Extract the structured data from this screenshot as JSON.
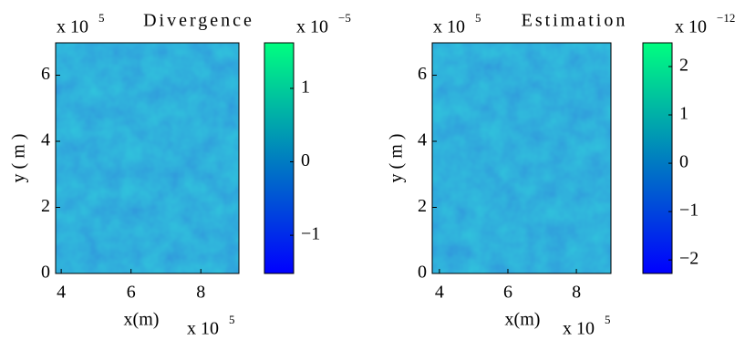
{
  "chart_data": [
    {
      "type": "heatmap",
      "title": "Divergence",
      "xlabel": "x(m)",
      "ylabel": "y ( m )",
      "x_scale_label": "x 10",
      "x_scale_exponent": "5",
      "y_scale_label": "x 10",
      "y_scale_exponent": "5",
      "xlim": [
        3.84,
        9.09
      ],
      "xticks": [
        4,
        6,
        8
      ],
      "ylim": [
        0,
        6.98
      ],
      "yticks": [
        0,
        2,
        4,
        6
      ],
      "colormap": [
        "#0000ff",
        "#00ff80"
      ],
      "colorbar": {
        "clim": [
          -1.52,
          1.62
        ],
        "ticks": [
          {
            "value": -1,
            "label": "−1"
          },
          0,
          1
        ],
        "scale_label": "x 10",
        "scale_exponent": "−5"
      }
    },
    {
      "type": "heatmap",
      "title": "Estimation",
      "xlabel": "x(m)",
      "ylabel": "y ( m )",
      "x_scale_label": "x 10",
      "x_scale_exponent": "5",
      "y_scale_label": "x 10",
      "y_scale_exponent": "5",
      "xlim": [
        3.79,
        9.01
      ],
      "xticks": [
        4,
        6,
        8
      ],
      "ylim": [
        0,
        6.98
      ],
      "yticks": [
        0,
        2,
        4,
        6
      ],
      "colormap": [
        "#0000ff",
        "#00ff80"
      ],
      "colorbar": {
        "clim": [
          -2.28,
          2.49
        ],
        "ticks": [
          {
            "value": -2,
            "label": "−2"
          },
          {
            "value": -1,
            "label": "−1"
          },
          0,
          1,
          2
        ],
        "scale_label": "x 10",
        "scale_exponent": "−12"
      }
    }
  ]
}
